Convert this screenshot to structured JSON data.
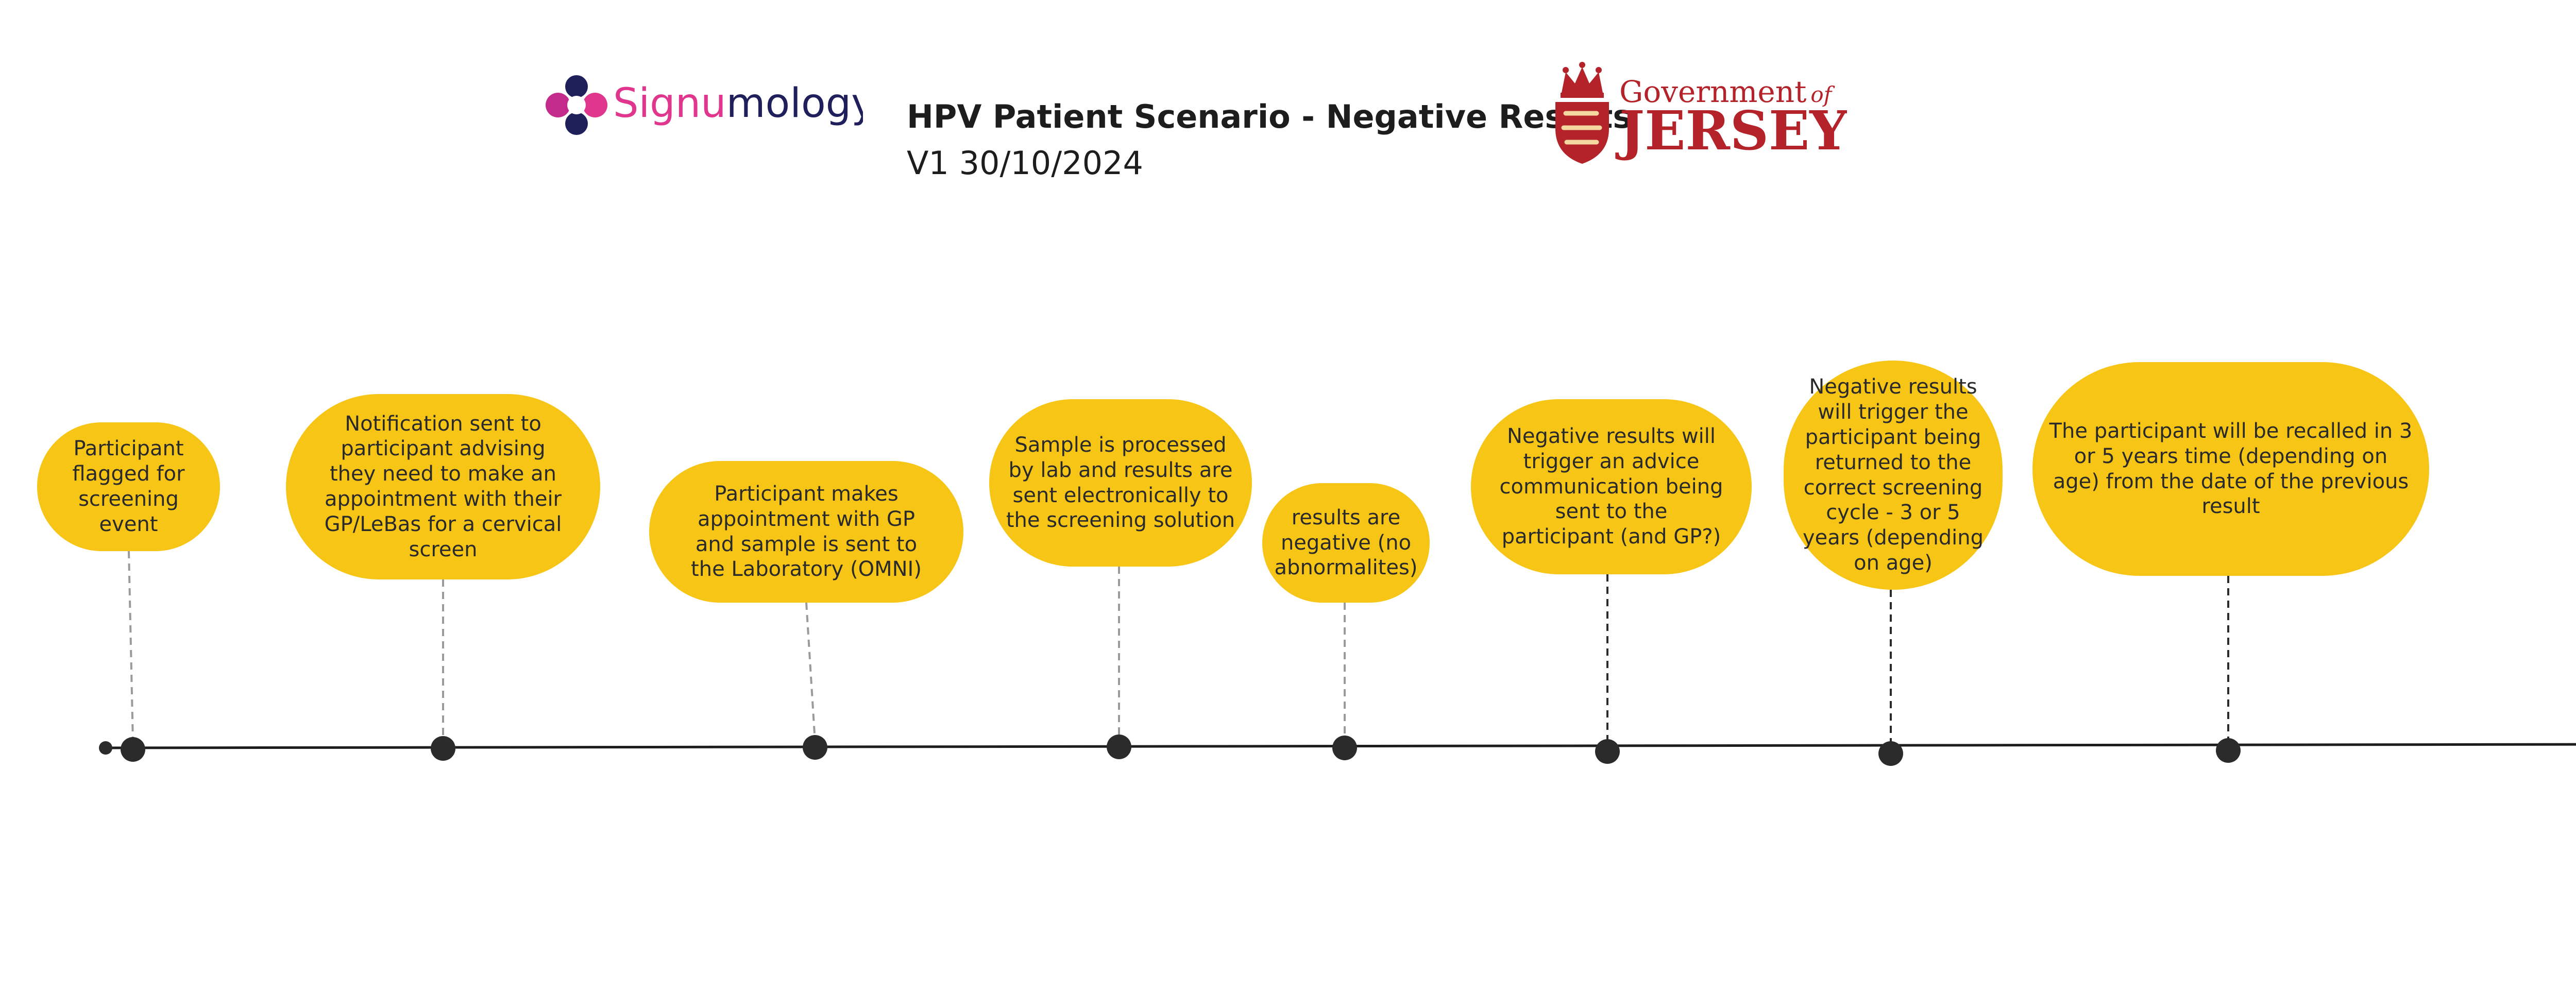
{
  "header": {
    "signumology_logo": {
      "text_part1": "Signu",
      "text_part2": "mology"
    },
    "title": "HPV Patient Scenario - Negative Results",
    "version": "V1 30/10/2024",
    "jersey_logo": {
      "line1": "Government",
      "line1_suffix": "of",
      "line2": "JERSEY"
    }
  },
  "timeline": {
    "events": [
      {
        "text": "Participant flagged for screening event"
      },
      {
        "text": "Notification sent to participant advising they need to make an appointment with their GP/LeBas for a cervical screen"
      },
      {
        "text": "Participant makes appointment with GP and sample is sent to the Laboratory (OMNI)"
      },
      {
        "text": "Sample is processed by lab and results are sent electronically to the screening solution"
      },
      {
        "text": "results are negative (no abnormalites)"
      },
      {
        "text": "Negative results will trigger an advice communication being sent to the participant (and GP?)"
      },
      {
        "text": "Negative results will trigger the participant being returned to the correct screening cycle - 3 or 5 years (depending on age)"
      },
      {
        "text": "The participant will be recalled in 3 or 5 years time (depending on age) from the date of the previous result"
      }
    ]
  },
  "colors": {
    "bubble": "#f7c516",
    "axis": "#1d1d1d",
    "dot": "#2b2b2b",
    "connector_light": "#9a9a9a",
    "connector_dark": "#2b2b2b",
    "signumology_pink": "#e0368d",
    "signumology_navy": "#1f1f5c",
    "jersey_red": "#b5232a"
  }
}
